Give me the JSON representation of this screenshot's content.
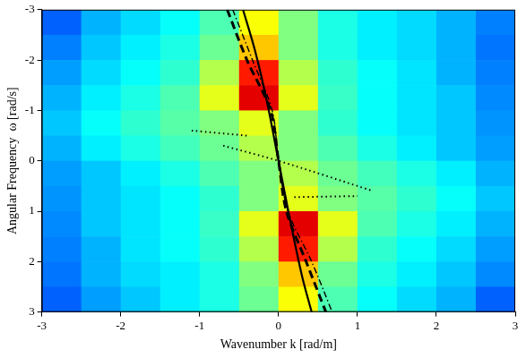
{
  "chart_data": {
    "type": "heatmap",
    "x_label": "Wavenumber k [rad/m]",
    "y_label": "Angular Frequency  ω [rad/s]",
    "xlim": [
      -3,
      3
    ],
    "xticks": [
      -3,
      -2,
      -1,
      0,
      1,
      2,
      3
    ],
    "ylim": [
      3,
      -3
    ],
    "yticks": [
      -3,
      -2,
      -1,
      0,
      1,
      2,
      3
    ],
    "grid": false,
    "heatmap": {
      "x_edges": [
        -3,
        -2.5,
        -2,
        -1.5,
        -1,
        -0.5,
        0,
        0.5,
        1,
        1.5,
        2,
        2.5,
        3
      ],
      "y_edges": [
        -3,
        -2.5,
        -2,
        -1.5,
        -1,
        -0.5,
        0,
        0.5,
        1,
        1.5,
        2,
        2.5,
        3
      ],
      "color_range": [
        0,
        1
      ],
      "cells": [
        [
          0.22,
          0.3,
          0.34,
          0.38,
          0.45,
          0.62,
          0.5,
          0.4,
          0.36,
          0.34,
          0.3,
          0.25
        ],
        [
          0.25,
          0.32,
          0.36,
          0.4,
          0.48,
          0.68,
          0.5,
          0.4,
          0.36,
          0.34,
          0.3,
          0.24
        ],
        [
          0.28,
          0.34,
          0.38,
          0.42,
          0.55,
          0.85,
          0.55,
          0.42,
          0.38,
          0.35,
          0.3,
          0.25
        ],
        [
          0.3,
          0.36,
          0.4,
          0.45,
          0.6,
          0.9,
          0.6,
          0.43,
          0.38,
          0.35,
          0.32,
          0.26
        ],
        [
          0.32,
          0.38,
          0.42,
          0.46,
          0.5,
          0.6,
          0.5,
          0.42,
          0.38,
          0.35,
          0.32,
          0.27
        ],
        [
          0.3,
          0.36,
          0.4,
          0.44,
          0.48,
          0.55,
          0.5,
          0.45,
          0.4,
          0.36,
          0.32,
          0.28
        ],
        [
          0.28,
          0.32,
          0.36,
          0.4,
          0.45,
          0.5,
          0.55,
          0.48,
          0.44,
          0.4,
          0.36,
          0.3
        ],
        [
          0.27,
          0.32,
          0.35,
          0.38,
          0.42,
          0.5,
          0.6,
          0.5,
          0.46,
          0.42,
          0.38,
          0.32
        ],
        [
          0.26,
          0.32,
          0.35,
          0.38,
          0.43,
          0.6,
          0.9,
          0.6,
          0.45,
          0.4,
          0.36,
          0.3
        ],
        [
          0.25,
          0.3,
          0.35,
          0.38,
          0.42,
          0.55,
          0.85,
          0.55,
          0.42,
          0.38,
          0.34,
          0.28
        ],
        [
          0.24,
          0.3,
          0.34,
          0.36,
          0.4,
          0.5,
          0.68,
          0.48,
          0.4,
          0.36,
          0.32,
          0.26
        ],
        [
          0.22,
          0.28,
          0.32,
          0.36,
          0.4,
          0.48,
          0.62,
          0.45,
          0.38,
          0.34,
          0.3,
          0.22
        ]
      ]
    },
    "series": [
      {
        "type": "line",
        "color": "#000000",
        "line_style": "solid",
        "x": [
          -0.45,
          -0.3,
          -0.15,
          0,
          0.15,
          0.3,
          0.42
        ],
        "values": [
          -3,
          -2.2,
          -1.2,
          0,
          1.2,
          2.3,
          3
        ]
      },
      {
        "type": "line",
        "color": "#000000",
        "line_style": "dashed",
        "x": [
          -0.65,
          -0.4,
          -0.1,
          0,
          0.1,
          0.35,
          0.6
        ],
        "values": [
          -3,
          -2,
          -1,
          0,
          1,
          2,
          3
        ]
      },
      {
        "type": "line",
        "color": "#000000",
        "line_style": "dashdot",
        "x": [
          -0.58,
          -0.33,
          -0.08,
          0,
          0.12,
          0.42,
          0.68
        ],
        "values": [
          -3,
          -2,
          -1,
          0,
          1,
          2,
          3
        ]
      },
      {
        "type": "line",
        "color": "#000000",
        "line_style": "dotted",
        "x": [
          -1.1,
          -0.4
        ],
        "values": [
          -0.6,
          -0.5
        ]
      },
      {
        "type": "line",
        "color": "#000000",
        "line_style": "dotted",
        "x": [
          -0.7,
          0,
          1.2
        ],
        "values": [
          -0.3,
          0,
          0.6
        ]
      },
      {
        "type": "line",
        "color": "#000000",
        "line_style": "dotted",
        "x": [
          0.2,
          1.0
        ],
        "values": [
          0.72,
          0.7
        ]
      }
    ]
  }
}
